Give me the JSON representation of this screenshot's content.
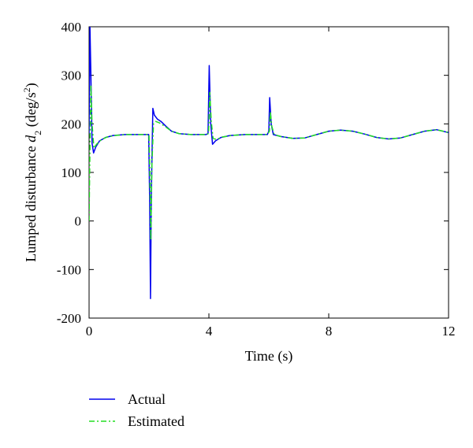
{
  "chart_data": {
    "type": "line",
    "xlabel": "Time (s)",
    "ylabel_main": "Lumped disturbance ",
    "ylabel_var": "d",
    "ylabel_sub": "2",
    "ylabel_unit_open": " (deg/s",
    "ylabel_unit_sup": "2",
    "ylabel_unit_close": ")",
    "xlim": [
      0,
      12
    ],
    "ylim": [
      -200,
      400
    ],
    "xticks": [
      0,
      4,
      8,
      12
    ],
    "yticks": [
      -200,
      -100,
      0,
      100,
      200,
      300,
      400
    ],
    "grid": false,
    "legend_position": "bottom-left",
    "series": [
      {
        "name": "Actual",
        "color": "#0000ee",
        "style": "solid",
        "points": [
          [
            0.0,
            180
          ],
          [
            0.03,
            400
          ],
          [
            0.06,
            300
          ],
          [
            0.1,
            160
          ],
          [
            0.15,
            140
          ],
          [
            0.22,
            152
          ],
          [
            0.35,
            165
          ],
          [
            0.55,
            172
          ],
          [
            0.8,
            176
          ],
          [
            1.2,
            178
          ],
          [
            1.6,
            178
          ],
          [
            1.95,
            178
          ],
          [
            1.99,
            178
          ],
          [
            2.02,
            50
          ],
          [
            2.05,
            -160
          ],
          [
            2.08,
            60
          ],
          [
            2.13,
            232
          ],
          [
            2.18,
            218
          ],
          [
            2.28,
            210
          ],
          [
            2.4,
            205
          ],
          [
            2.55,
            196
          ],
          [
            2.75,
            185
          ],
          [
            3.0,
            180
          ],
          [
            3.4,
            178
          ],
          [
            3.9,
            178
          ],
          [
            3.97,
            180
          ],
          [
            4.01,
            320
          ],
          [
            4.06,
            200
          ],
          [
            4.12,
            158
          ],
          [
            4.22,
            165
          ],
          [
            4.4,
            172
          ],
          [
            4.7,
            176
          ],
          [
            5.2,
            178
          ],
          [
            5.95,
            178
          ],
          [
            6.0,
            185
          ],
          [
            6.03,
            254
          ],
          [
            6.08,
            200
          ],
          [
            6.15,
            178
          ],
          [
            6.4,
            174
          ],
          [
            6.8,
            170
          ],
          [
            7.2,
            171
          ],
          [
            7.6,
            178
          ],
          [
            8.0,
            185
          ],
          [
            8.4,
            187
          ],
          [
            8.8,
            185
          ],
          [
            9.2,
            179
          ],
          [
            9.6,
            172
          ],
          [
            10.0,
            169
          ],
          [
            10.4,
            171
          ],
          [
            10.8,
            178
          ],
          [
            11.2,
            185
          ],
          [
            11.6,
            188
          ],
          [
            12.0,
            182
          ]
        ]
      },
      {
        "name": "Estimated",
        "color": "#22dd22",
        "style": "dash-dot",
        "points": [
          [
            0.0,
            0
          ],
          [
            0.03,
            150
          ],
          [
            0.06,
            280
          ],
          [
            0.1,
            200
          ],
          [
            0.16,
            150
          ],
          [
            0.25,
            158
          ],
          [
            0.4,
            167
          ],
          [
            0.6,
            173
          ],
          [
            0.85,
            176
          ],
          [
            1.2,
            178
          ],
          [
            1.6,
            178
          ],
          [
            1.95,
            178
          ],
          [
            2.0,
            178
          ],
          [
            2.03,
            100
          ],
          [
            2.06,
            -40
          ],
          [
            2.1,
            120
          ],
          [
            2.15,
            200
          ],
          [
            2.22,
            205
          ],
          [
            2.35,
            202
          ],
          [
            2.55,
            194
          ],
          [
            2.75,
            185
          ],
          [
            3.0,
            180
          ],
          [
            3.4,
            178
          ],
          [
            3.9,
            178
          ],
          [
            3.99,
            180
          ],
          [
            4.03,
            265
          ],
          [
            4.08,
            205
          ],
          [
            4.14,
            170
          ],
          [
            4.25,
            168
          ],
          [
            4.45,
            173
          ],
          [
            4.75,
            176
          ],
          [
            5.2,
            178
          ],
          [
            5.95,
            178
          ],
          [
            6.02,
            185
          ],
          [
            6.05,
            225
          ],
          [
            6.1,
            195
          ],
          [
            6.18,
            178
          ],
          [
            6.4,
            174
          ],
          [
            6.8,
            170
          ],
          [
            7.2,
            171
          ],
          [
            7.6,
            178
          ],
          [
            8.0,
            185
          ],
          [
            8.4,
            187
          ],
          [
            8.8,
            185
          ],
          [
            9.2,
            179
          ],
          [
            9.6,
            172
          ],
          [
            10.0,
            169
          ],
          [
            10.4,
            171
          ],
          [
            10.8,
            178
          ],
          [
            11.2,
            185
          ],
          [
            11.6,
            188
          ],
          [
            12.0,
            182
          ]
        ]
      }
    ]
  }
}
